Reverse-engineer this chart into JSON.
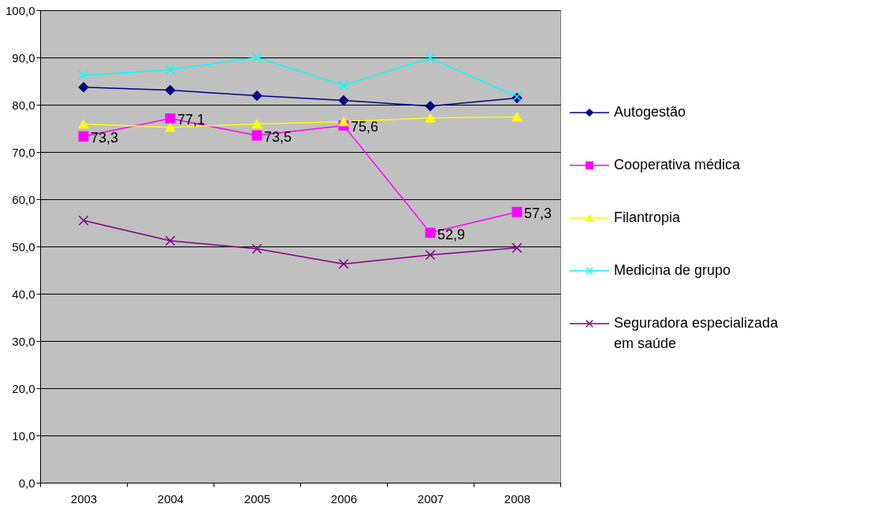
{
  "chart_data": {
    "type": "line",
    "categories": [
      "2003",
      "2004",
      "2005",
      "2006",
      "2007",
      "2008"
    ],
    "ylim": [
      0,
      100
    ],
    "yticks": [
      {
        "value": 0,
        "label": "0,0"
      },
      {
        "value": 10,
        "label": "10,0"
      },
      {
        "value": 20,
        "label": "20,0"
      },
      {
        "value": 30,
        "label": "30,0"
      },
      {
        "value": 40,
        "label": "40,0"
      },
      {
        "value": 50,
        "label": "50,0"
      },
      {
        "value": 60,
        "label": "60,0"
      },
      {
        "value": 70,
        "label": "70,0"
      },
      {
        "value": 80,
        "label": "80,0"
      },
      {
        "value": 90,
        "label": "90,0"
      },
      {
        "value": 100,
        "label": "100,0"
      }
    ],
    "grid": "y",
    "legend": "right",
    "line_style": "solid",
    "series": [
      {
        "name": "Autogestão",
        "color": "#000080",
        "marker": "diamond",
        "values": [
          83.7,
          83.1,
          81.9,
          80.9,
          79.7,
          81.4
        ]
      },
      {
        "name": "Cooperativa médica",
        "color": "#ff00ff",
        "marker": "square",
        "values": [
          73.3,
          77.1,
          73.5,
          75.6,
          52.9,
          57.3
        ],
        "value_labels": [
          "73,3",
          "77,1",
          "73,5",
          "75,6",
          "52,9",
          "57,3"
        ]
      },
      {
        "name": "Filantropia",
        "color": "#ffff00",
        "marker": "triangle",
        "values": [
          75.9,
          75.2,
          75.9,
          76.4,
          77.2,
          77.4
        ]
      },
      {
        "name": "Medicina de grupo",
        "color": "#00ffff",
        "marker": "cross",
        "values": [
          86.2,
          87.4,
          90.0,
          84.1,
          89.9,
          81.7
        ]
      },
      {
        "name": "Seguradora especializada em saúde",
        "color": "#800080",
        "marker": "cross",
        "values": [
          55.5,
          51.2,
          49.5,
          46.3,
          48.2,
          49.7
        ]
      }
    ]
  }
}
